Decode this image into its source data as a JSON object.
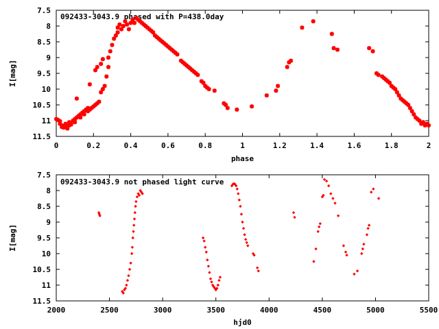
{
  "chart_data": [
    {
      "type": "scatter",
      "title": "092433-3043.9 phased with P=438.0day",
      "xlabel": "phase",
      "ylabel": "I[mag]",
      "xlim": [
        0,
        2
      ],
      "ylim": [
        11.5,
        7.5
      ],
      "y_inverted": true,
      "x_ticks": [
        "0",
        "0.2",
        "0.4",
        "0.6",
        "0.8",
        "1",
        "1.2",
        "1.4",
        "1.6",
        "1.8",
        "2"
      ],
      "y_ticks": [
        "7.5",
        "8",
        "8.5",
        "9",
        "9.5",
        "10",
        "10.5",
        "11",
        "11.5"
      ],
      "grid": false,
      "marker": "star",
      "color": "#ff0000",
      "series": [
        {
          "points": [
            [
              0.0,
              10.95
            ],
            [
              0.01,
              10.98
            ],
            [
              0.02,
              11.02
            ],
            [
              0.02,
              11.1
            ],
            [
              0.03,
              11.15
            ],
            [
              0.03,
              11.2
            ],
            [
              0.04,
              11.22
            ],
            [
              0.05,
              11.18
            ],
            [
              0.05,
              11.1
            ],
            [
              0.06,
              11.25
            ],
            [
              0.07,
              11.15
            ],
            [
              0.07,
              11.05
            ],
            [
              0.08,
              11.12
            ],
            [
              0.09,
              11.0
            ],
            [
              0.1,
              10.95
            ],
            [
              0.1,
              11.05
            ],
            [
              0.11,
              10.9
            ],
            [
              0.11,
              10.3
            ],
            [
              0.12,
              10.85
            ],
            [
              0.13,
              10.9
            ],
            [
              0.13,
              10.8
            ],
            [
              0.14,
              10.75
            ],
            [
              0.15,
              10.7
            ],
            [
              0.15,
              10.8
            ],
            [
              0.16,
              10.65
            ],
            [
              0.17,
              10.7
            ],
            [
              0.17,
              10.6
            ],
            [
              0.18,
              10.65
            ],
            [
              0.18,
              9.85
            ],
            [
              0.19,
              10.6
            ],
            [
              0.2,
              10.55
            ],
            [
              0.21,
              10.5
            ],
            [
              0.21,
              9.4
            ],
            [
              0.22,
              10.45
            ],
            [
              0.22,
              9.3
            ],
            [
              0.23,
              10.4
            ],
            [
              0.24,
              9.2
            ],
            [
              0.24,
              10.1
            ],
            [
              0.25,
              10.0
            ],
            [
              0.25,
              9.05
            ],
            [
              0.26,
              9.9
            ],
            [
              0.27,
              9.6
            ],
            [
              0.28,
              9.3
            ],
            [
              0.28,
              9.0
            ],
            [
              0.29,
              8.8
            ],
            [
              0.3,
              8.6
            ],
            [
              0.31,
              8.4
            ],
            [
              0.32,
              8.3
            ],
            [
              0.33,
              8.2
            ],
            [
              0.33,
              8.05
            ],
            [
              0.34,
              7.95
            ],
            [
              0.35,
              8.1
            ],
            [
              0.36,
              8.0
            ],
            [
              0.37,
              7.85
            ],
            [
              0.38,
              7.95
            ],
            [
              0.39,
              8.1
            ],
            [
              0.4,
              7.9
            ],
            [
              0.41,
              7.8
            ],
            [
              0.42,
              7.9
            ],
            [
              0.43,
              7.75
            ],
            [
              0.44,
              7.8
            ],
            [
              0.45,
              7.85
            ],
            [
              0.46,
              7.9
            ],
            [
              0.47,
              7.95
            ],
            [
              0.48,
              8.0
            ],
            [
              0.49,
              8.05
            ],
            [
              0.5,
              8.1
            ],
            [
              0.51,
              8.15
            ],
            [
              0.52,
              8.2
            ],
            [
              0.53,
              8.3
            ],
            [
              0.54,
              8.35
            ],
            [
              0.55,
              8.4
            ],
            [
              0.56,
              8.45
            ],
            [
              0.57,
              8.5
            ],
            [
              0.58,
              8.55
            ],
            [
              0.59,
              8.6
            ],
            [
              0.6,
              8.65
            ],
            [
              0.61,
              8.7
            ],
            [
              0.62,
              8.75
            ],
            [
              0.63,
              8.8
            ],
            [
              0.64,
              8.85
            ],
            [
              0.65,
              8.9
            ],
            [
              0.67,
              9.1
            ],
            [
              0.68,
              9.15
            ],
            [
              0.69,
              9.2
            ],
            [
              0.7,
              9.25
            ],
            [
              0.71,
              9.3
            ],
            [
              0.72,
              9.35
            ],
            [
              0.73,
              9.4
            ],
            [
              0.74,
              9.45
            ],
            [
              0.75,
              9.5
            ],
            [
              0.76,
              9.55
            ],
            [
              0.78,
              9.75
            ],
            [
              0.79,
              9.8
            ],
            [
              0.8,
              9.9
            ],
            [
              0.81,
              9.95
            ],
            [
              0.82,
              10.0
            ],
            [
              0.85,
              10.05
            ],
            [
              0.9,
              10.45
            ],
            [
              0.91,
              10.5
            ],
            [
              0.92,
              10.6
            ],
            [
              0.97,
              10.65
            ],
            [
              1.05,
              10.55
            ],
            [
              1.13,
              10.2
            ],
            [
              1.18,
              10.05
            ],
            [
              1.19,
              9.9
            ],
            [
              1.24,
              9.3
            ],
            [
              1.25,
              9.15
            ],
            [
              1.26,
              9.1
            ],
            [
              1.32,
              8.05
            ],
            [
              1.38,
              7.85
            ],
            [
              1.48,
              8.25
            ],
            [
              1.49,
              8.7
            ],
            [
              1.51,
              8.75
            ],
            [
              1.68,
              8.7
            ],
            [
              1.7,
              8.8
            ],
            [
              1.72,
              9.5
            ],
            [
              1.73,
              9.55
            ],
            [
              1.75,
              9.6
            ],
            [
              1.76,
              9.65
            ],
            [
              1.77,
              9.7
            ],
            [
              1.78,
              9.75
            ],
            [
              1.79,
              9.8
            ],
            [
              1.8,
              9.9
            ],
            [
              1.81,
              9.95
            ],
            [
              1.82,
              10.0
            ],
            [
              1.83,
              10.1
            ],
            [
              1.84,
              10.2
            ],
            [
              1.85,
              10.3
            ],
            [
              1.86,
              10.35
            ],
            [
              1.87,
              10.4
            ],
            [
              1.88,
              10.45
            ],
            [
              1.89,
              10.5
            ],
            [
              1.9,
              10.6
            ],
            [
              1.91,
              10.7
            ],
            [
              1.92,
              10.8
            ],
            [
              1.93,
              10.9
            ],
            [
              1.94,
              10.95
            ],
            [
              1.95,
              11.0
            ],
            [
              1.96,
              11.1
            ],
            [
              1.97,
              11.05
            ],
            [
              1.98,
              11.15
            ],
            [
              1.99,
              11.1
            ],
            [
              2.0,
              11.15
            ]
          ]
        }
      ]
    },
    {
      "type": "scatter",
      "title": "092433-3043.9 not phased light curve",
      "xlabel": "hjd0",
      "ylabel": "I[mag]",
      "xlim": [
        2000,
        5500
      ],
      "ylim": [
        11.5,
        7.5
      ],
      "y_inverted": true,
      "x_ticks": [
        "2000",
        "2500",
        "3000",
        "3500",
        "4000",
        "4500",
        "5000",
        "5500"
      ],
      "y_ticks": [
        "7.5",
        "8",
        "8.5",
        "9",
        "9.5",
        "10",
        "10.5",
        "11",
        "11.5"
      ],
      "grid": false,
      "marker": "diamond",
      "color": "#ff0000",
      "series": [
        {
          "points": [
            [
              2400,
              8.7
            ],
            [
              2405,
              8.75
            ],
            [
              2410,
              8.8
            ],
            [
              2620,
              11.2
            ],
            [
              2630,
              11.25
            ],
            [
              2640,
              11.15
            ],
            [
              2650,
              11.1
            ],
            [
              2660,
              11.0
            ],
            [
              2670,
              10.85
            ],
            [
              2680,
              10.7
            ],
            [
              2690,
              10.5
            ],
            [
              2700,
              10.3
            ],
            [
              2710,
              10.0
            ],
            [
              2715,
              9.8
            ],
            [
              2720,
              9.5
            ],
            [
              2725,
              9.3
            ],
            [
              2730,
              9.1
            ],
            [
              2735,
              8.9
            ],
            [
              2740,
              8.7
            ],
            [
              2745,
              8.5
            ],
            [
              2750,
              8.35
            ],
            [
              2760,
              8.2
            ],
            [
              2770,
              8.1
            ],
            [
              2780,
              8.15
            ],
            [
              2790,
              8.0
            ],
            [
              2800,
              8.05
            ],
            [
              2810,
              8.1
            ],
            [
              3380,
              9.5
            ],
            [
              3390,
              9.6
            ],
            [
              3400,
              9.8
            ],
            [
              3410,
              9.95
            ],
            [
              3420,
              10.2
            ],
            [
              3430,
              10.4
            ],
            [
              3440,
              10.6
            ],
            [
              3450,
              10.8
            ],
            [
              3460,
              10.9
            ],
            [
              3470,
              11.0
            ],
            [
              3480,
              11.05
            ],
            [
              3490,
              11.1
            ],
            [
              3500,
              11.15
            ],
            [
              3510,
              11.1
            ],
            [
              3520,
              11.0
            ],
            [
              3530,
              10.85
            ],
            [
              3540,
              10.75
            ],
            [
              3650,
              7.85
            ],
            [
              3660,
              7.8
            ],
            [
              3670,
              7.78
            ],
            [
              3680,
              7.8
            ],
            [
              3690,
              7.85
            ],
            [
              3700,
              7.95
            ],
            [
              3710,
              8.1
            ],
            [
              3720,
              8.3
            ],
            [
              3730,
              8.5
            ],
            [
              3740,
              8.75
            ],
            [
              3750,
              9.0
            ],
            [
              3760,
              9.2
            ],
            [
              3770,
              9.4
            ],
            [
              3780,
              9.55
            ],
            [
              3790,
              9.65
            ],
            [
              3800,
              9.75
            ],
            [
              3850,
              10.0
            ],
            [
              3860,
              10.05
            ],
            [
              3890,
              10.45
            ],
            [
              3900,
              10.55
            ],
            [
              4230,
              8.7
            ],
            [
              4240,
              8.85
            ],
            [
              4420,
              10.25
            ],
            [
              4440,
              9.85
            ],
            [
              4460,
              9.3
            ],
            [
              4470,
              9.15
            ],
            [
              4480,
              9.05
            ],
            [
              4500,
              8.2
            ],
            [
              4510,
              8.15
            ],
            [
              4520,
              7.65
            ],
            [
              4540,
              7.7
            ],
            [
              4560,
              7.85
            ],
            [
              4580,
              8.1
            ],
            [
              4600,
              8.25
            ],
            [
              4620,
              8.4
            ],
            [
              4650,
              8.8
            ],
            [
              4700,
              9.75
            ],
            [
              4720,
              9.95
            ],
            [
              4730,
              10.05
            ],
            [
              4800,
              10.65
            ],
            [
              4830,
              10.55
            ],
            [
              4870,
              10.0
            ],
            [
              4880,
              9.85
            ],
            [
              4890,
              9.7
            ],
            [
              4920,
              9.4
            ],
            [
              4930,
              9.2
            ],
            [
              4940,
              9.1
            ],
            [
              4960,
              8.05
            ],
            [
              4980,
              7.95
            ],
            [
              5030,
              8.25
            ]
          ]
        }
      ]
    }
  ]
}
